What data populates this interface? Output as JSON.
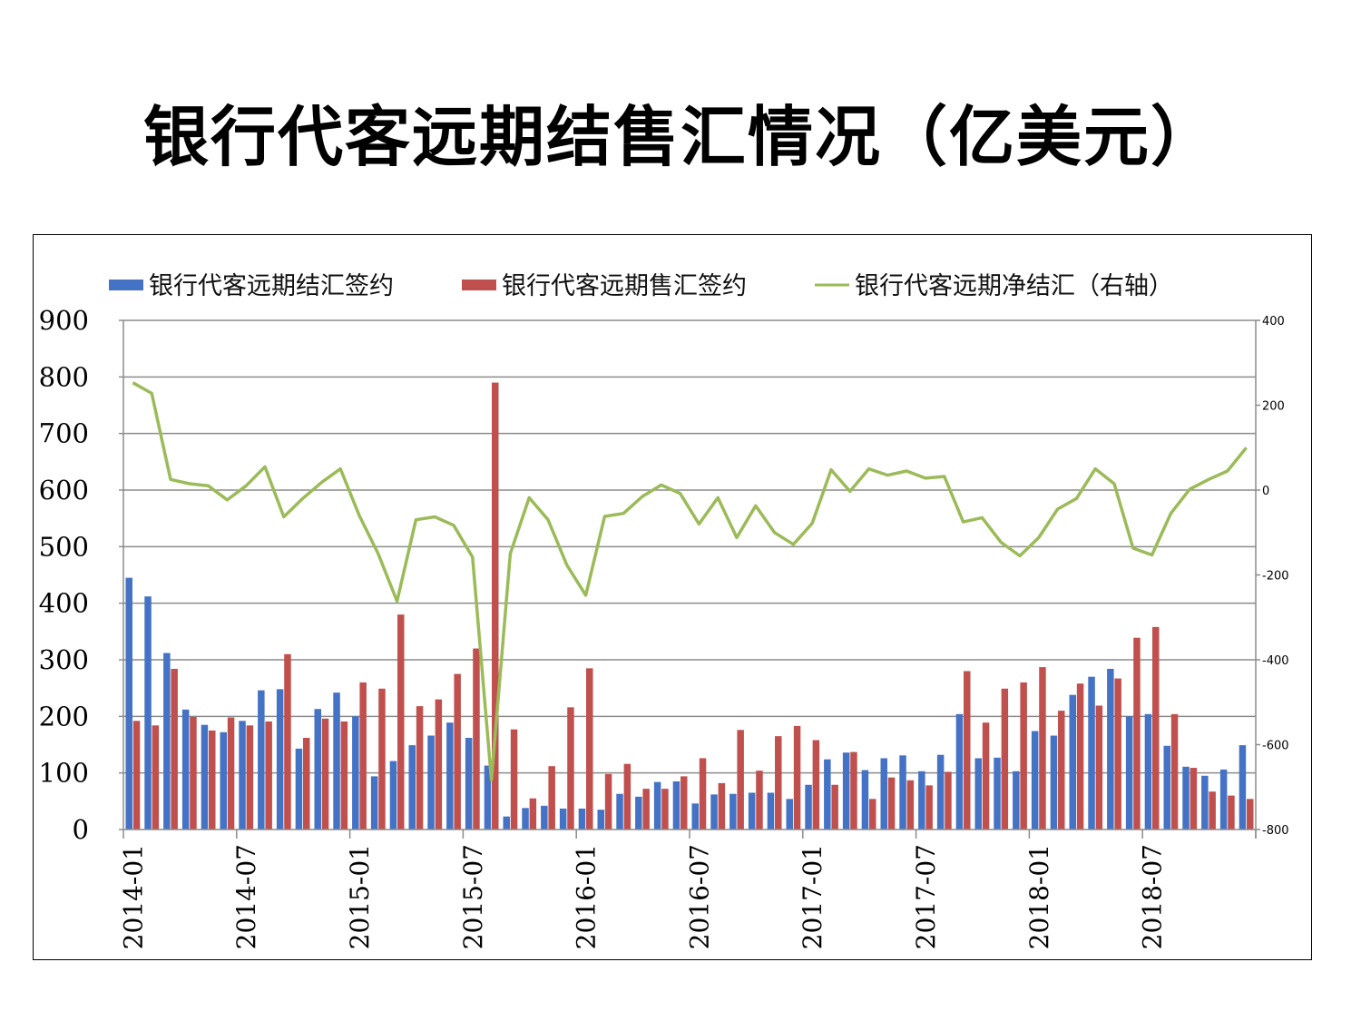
{
  "title": "银行代客远期结售汇情况（亿美元）",
  "chart_data": {
    "type": "bar",
    "title": "银行代客远期结售汇情况（亿美元）",
    "legend_position": "top",
    "grid": "horizontal",
    "x": [
      "2014-01",
      "2014-02",
      "2014-03",
      "2014-04",
      "2014-05",
      "2014-06",
      "2014-07",
      "2014-08",
      "2014-09",
      "2014-10",
      "2014-11",
      "2014-12",
      "2015-01",
      "2015-02",
      "2015-03",
      "2015-04",
      "2015-05",
      "2015-06",
      "2015-07",
      "2015-08",
      "2015-09",
      "2015-10",
      "2015-11",
      "2015-12",
      "2016-01",
      "2016-02",
      "2016-03",
      "2016-04",
      "2016-05",
      "2016-06",
      "2016-07",
      "2016-08",
      "2016-09",
      "2016-10",
      "2016-11",
      "2016-12",
      "2017-01",
      "2017-02",
      "2017-03",
      "2017-04",
      "2017-05",
      "2017-06",
      "2017-07",
      "2017-08",
      "2017-09",
      "2017-10",
      "2017-11",
      "2017-12",
      "2018-01",
      "2018-02",
      "2018-03",
      "2018-04",
      "2018-05",
      "2018-06",
      "2018-07",
      "2018-08",
      "2018-09",
      "2018-10",
      "2018-11",
      "2018-12"
    ],
    "x_tick_labels": [
      "2014-01",
      "2014-07",
      "2015-01",
      "2015-07",
      "2016-01",
      "2016-07",
      "2017-01",
      "2017-07",
      "2018-01",
      "2018-07"
    ],
    "y_left": {
      "ticks": [
        "0",
        "100",
        "200",
        "300",
        "400",
        "500",
        "600",
        "700",
        "800",
        "900"
      ],
      "range": [
        0,
        900
      ]
    },
    "y_right": {
      "ticks": [
        "-800",
        "-600",
        "-400",
        "-200",
        "0",
        "200",
        "400"
      ],
      "range": [
        -800,
        400
      ]
    },
    "series": [
      {
        "name": "银行代客远期结汇签约",
        "kind": "bar",
        "axis": "left",
        "color": "#4472C4",
        "values": [
          445,
          412,
          312,
          212,
          185,
          172,
          192,
          246,
          248,
          143,
          213,
          242,
          200,
          94,
          121,
          149,
          166,
          189,
          162,
          113,
          23,
          38,
          42,
          37,
          37,
          35,
          63,
          58,
          84,
          85,
          46,
          62,
          63,
          65,
          65,
          54,
          79,
          124,
          136,
          105,
          126,
          131,
          103,
          132,
          204,
          126,
          127,
          103,
          174,
          166,
          238,
          270,
          284,
          200,
          204,
          148,
          111,
          95,
          106,
          149
        ]
      },
      {
        "name": "银行代客远期售汇签约",
        "kind": "bar",
        "axis": "left",
        "color": "#C0504D",
        "values": [
          192,
          184,
          284,
          199,
          175,
          198,
          184,
          191,
          310,
          162,
          196,
          191,
          260,
          249,
          380,
          218,
          230,
          275,
          320,
          790,
          177,
          55,
          112,
          216,
          285,
          98,
          116,
          72,
          72,
          94,
          126,
          82,
          176,
          104,
          165,
          183,
          158,
          79,
          137,
          54,
          92,
          87,
          78,
          102,
          280,
          189,
          249,
          260,
          287,
          210,
          258,
          219,
          267,
          339,
          358,
          204,
          109,
          67,
          60,
          54
        ]
      },
      {
        "name": "银行代客远期净结汇（右轴）",
        "kind": "line",
        "axis": "right",
        "color": "#9BBB59",
        "values": [
          253,
          228,
          25,
          15,
          10,
          -23,
          10,
          55,
          -63,
          -20,
          18,
          50,
          -60,
          -150,
          -262,
          -70,
          -63,
          -83,
          -158,
          -683,
          -150,
          -18,
          -70,
          -177,
          -248,
          -62,
          -55,
          -15,
          12,
          -8,
          -80,
          -18,
          -112,
          -37,
          -100,
          -128,
          -78,
          48,
          -3,
          50,
          35,
          45,
          28,
          32,
          -75,
          -65,
          -123,
          -155,
          -112,
          -45,
          -20,
          50,
          15,
          -137,
          -153,
          -55,
          2,
          25,
          45,
          100
        ]
      }
    ]
  }
}
